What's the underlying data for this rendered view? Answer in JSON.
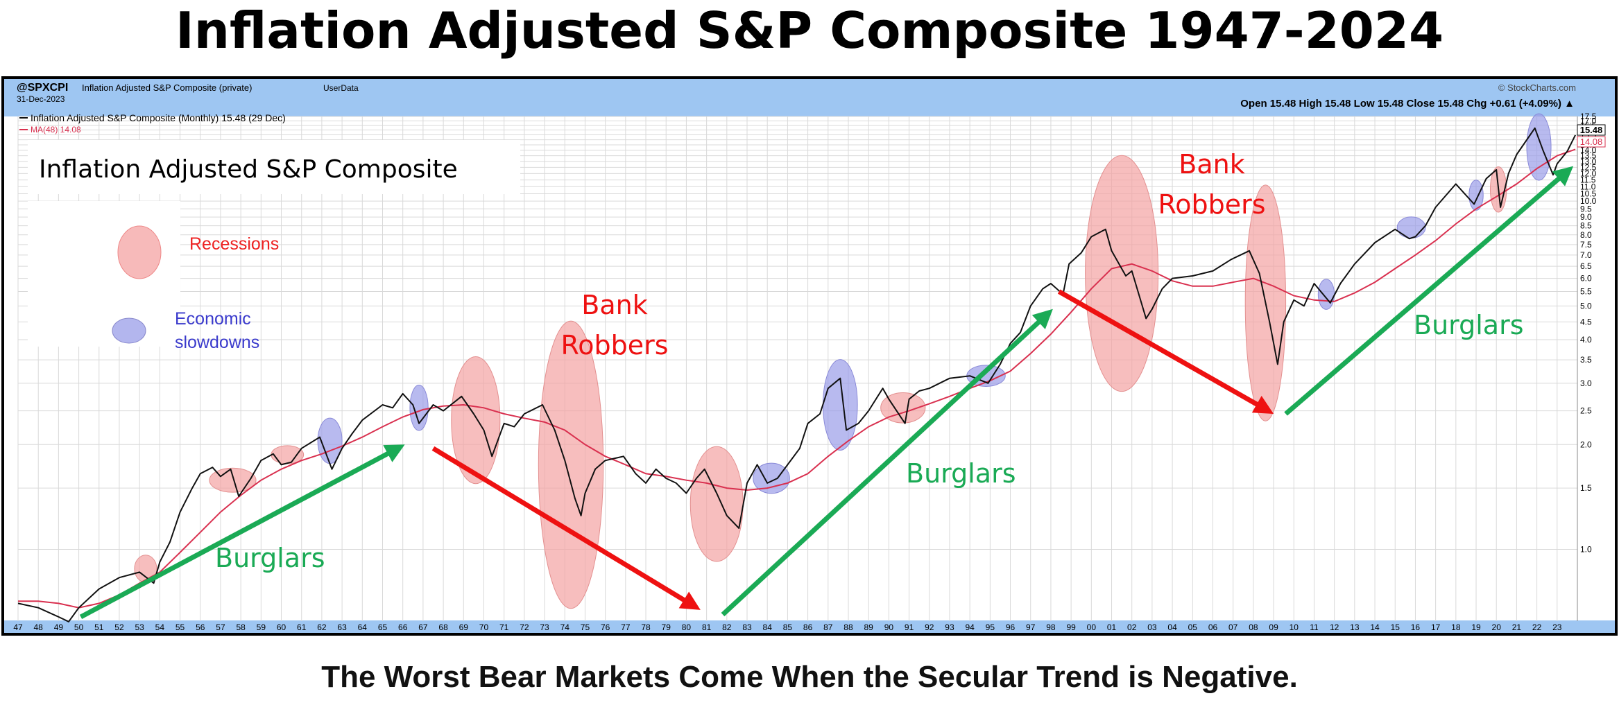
{
  "page": {
    "title": "Inflation Adjusted S&P Composite 1947-2024",
    "caption": "The Worst Bear Markets Come When the Secular Trend is Negative."
  },
  "header": {
    "symbol": "@SPXCPI",
    "symbol_desc": "Inflation Adjusted S&P Composite (private)",
    "userdata": "UserData",
    "date": "31-Dec-2023",
    "watermark": "© StockCharts.com",
    "ohlc": "Open 15.48  High 15.48  Low 15.48  Close 15.48  Chg +0.61 (+4.09%) ▲"
  },
  "legend": {
    "line1": "Inflation Adjusted S&P Composite (Monthly) 15.48 (29 Dec)",
    "line2": "MA(48) 14.08",
    "box_title": "Inflation Adjusted S&P Composite",
    "recessions_label": "Recessions",
    "slowdowns_label_1": "Economic",
    "slowdowns_label_2": "slowdowns"
  },
  "price_tags": {
    "close": "15.48",
    "ma": "14.08"
  },
  "colors": {
    "price_line": "#111111",
    "ma_line": "#d9304f",
    "recession_fill": "#f4a3a3",
    "slowdown_fill": "#9a9de8",
    "burglars": "#1aaa55",
    "robbers": "#ee1111",
    "header_bg": "#9ec6f2",
    "grid": "#d9d9d9"
  },
  "annotations": {
    "burglars": "Burglars",
    "bank_robbers_1": "Bank",
    "bank_robbers_2": "Robbers"
  },
  "chart_data": {
    "type": "line",
    "log_scale": true,
    "grid": true,
    "x_range": [
      1947,
      2024
    ],
    "y_range": [
      0.6,
      17.5
    ],
    "x_tick_labels": [
      "47",
      "48",
      "49",
      "50",
      "51",
      "52",
      "53",
      "54",
      "55",
      "56",
      "57",
      "58",
      "59",
      "60",
      "61",
      "62",
      "63",
      "64",
      "65",
      "66",
      "67",
      "68",
      "69",
      "70",
      "71",
      "72",
      "73",
      "74",
      "75",
      "76",
      "77",
      "78",
      "79",
      "80",
      "81",
      "82",
      "83",
      "84",
      "85",
      "86",
      "87",
      "88",
      "89",
      "90",
      "91",
      "92",
      "93",
      "94",
      "95",
      "96",
      "97",
      "98",
      "99",
      "00",
      "01",
      "02",
      "03",
      "04",
      "05",
      "06",
      "07",
      "08",
      "09",
      "10",
      "11",
      "12",
      "13",
      "14",
      "15",
      "16",
      "17",
      "18",
      "19",
      "20",
      "21",
      "22",
      "23"
    ],
    "y_ticks": [
      1.0,
      1.5,
      2.0,
      2.5,
      3.0,
      3.5,
      4.0,
      4.5,
      5.0,
      5.5,
      6.0,
      6.5,
      7.0,
      7.5,
      8.0,
      8.5,
      9.0,
      9.5,
      10.0,
      10.5,
      11.0,
      11.5,
      12.0,
      12.5,
      13.0,
      13.5,
      14.0,
      14.5,
      15.0,
      15.5,
      16.0,
      16.5,
      17.0,
      17.5
    ],
    "series": [
      {
        "name": "Inflation Adjusted S&P Composite (Monthly)",
        "points": [
          [
            1947,
            0.7
          ],
          [
            1948,
            0.68
          ],
          [
            1949,
            0.64
          ],
          [
            1949.5,
            0.62
          ],
          [
            1950,
            0.68
          ],
          [
            1951,
            0.77
          ],
          [
            1952,
            0.83
          ],
          [
            1953,
            0.86
          ],
          [
            1953.7,
            0.8
          ],
          [
            1954,
            0.92
          ],
          [
            1954.5,
            1.05
          ],
          [
            1955,
            1.28
          ],
          [
            1955.6,
            1.5
          ],
          [
            1956,
            1.65
          ],
          [
            1956.6,
            1.72
          ],
          [
            1957,
            1.62
          ],
          [
            1957.5,
            1.7
          ],
          [
            1957.9,
            1.42
          ],
          [
            1958.5,
            1.6
          ],
          [
            1959,
            1.8
          ],
          [
            1959.6,
            1.88
          ],
          [
            1960,
            1.75
          ],
          [
            1960.5,
            1.78
          ],
          [
            1961,
            1.95
          ],
          [
            1961.9,
            2.1
          ],
          [
            1962.5,
            1.7
          ],
          [
            1963,
            1.95
          ],
          [
            1963.5,
            2.15
          ],
          [
            1964,
            2.35
          ],
          [
            1965,
            2.6
          ],
          [
            1965.5,
            2.55
          ],
          [
            1966,
            2.8
          ],
          [
            1966.5,
            2.6
          ],
          [
            1966.8,
            2.3
          ],
          [
            1967.5,
            2.6
          ],
          [
            1968,
            2.5
          ],
          [
            1968.9,
            2.75
          ],
          [
            1969.5,
            2.45
          ],
          [
            1970,
            2.2
          ],
          [
            1970.4,
            1.85
          ],
          [
            1971,
            2.3
          ],
          [
            1971.5,
            2.25
          ],
          [
            1972,
            2.45
          ],
          [
            1972.9,
            2.6
          ],
          [
            1973.5,
            2.2
          ],
          [
            1974,
            1.8
          ],
          [
            1974.5,
            1.4
          ],
          [
            1974.8,
            1.25
          ],
          [
            1975,
            1.45
          ],
          [
            1975.5,
            1.7
          ],
          [
            1976,
            1.8
          ],
          [
            1976.9,
            1.85
          ],
          [
            1977.5,
            1.65
          ],
          [
            1978,
            1.55
          ],
          [
            1978.5,
            1.7
          ],
          [
            1979,
            1.6
          ],
          [
            1979.5,
            1.55
          ],
          [
            1980,
            1.45
          ],
          [
            1980.5,
            1.6
          ],
          [
            1980.9,
            1.7
          ],
          [
            1981.5,
            1.45
          ],
          [
            1982,
            1.25
          ],
          [
            1982.6,
            1.15
          ],
          [
            1983,
            1.55
          ],
          [
            1983.5,
            1.75
          ],
          [
            1984,
            1.55
          ],
          [
            1984.5,
            1.6
          ],
          [
            1985,
            1.75
          ],
          [
            1985.6,
            1.95
          ],
          [
            1986,
            2.3
          ],
          [
            1986.6,
            2.45
          ],
          [
            1987,
            2.9
          ],
          [
            1987.6,
            3.1
          ],
          [
            1987.9,
            2.2
          ],
          [
            1988.5,
            2.3
          ],
          [
            1989,
            2.5
          ],
          [
            1989.7,
            2.9
          ],
          [
            1990,
            2.7
          ],
          [
            1990.8,
            2.3
          ],
          [
            1991,
            2.7
          ],
          [
            1991.5,
            2.85
          ],
          [
            1992,
            2.9
          ],
          [
            1993,
            3.1
          ],
          [
            1994,
            3.15
          ],
          [
            1994.9,
            3.0
          ],
          [
            1995.5,
            3.4
          ],
          [
            1996,
            3.9
          ],
          [
            1996.5,
            4.2
          ],
          [
            1997,
            5.0
          ],
          [
            1997.6,
            5.6
          ],
          [
            1998,
            5.8
          ],
          [
            1998.6,
            5.4
          ],
          [
            1998.9,
            6.6
          ],
          [
            1999.5,
            7.1
          ],
          [
            2000,
            7.9
          ],
          [
            2000.7,
            8.3
          ],
          [
            2001,
            7.2
          ],
          [
            2001.7,
            6.1
          ],
          [
            2002,
            6.3
          ],
          [
            2002.7,
            4.6
          ],
          [
            2003,
            4.9
          ],
          [
            2003.5,
            5.6
          ],
          [
            2004,
            6.0
          ],
          [
            2005,
            6.1
          ],
          [
            2006,
            6.3
          ],
          [
            2006.9,
            6.8
          ],
          [
            2007.8,
            7.2
          ],
          [
            2008.3,
            6.2
          ],
          [
            2008.8,
            4.5
          ],
          [
            2009.2,
            3.4
          ],
          [
            2009.5,
            4.5
          ],
          [
            2010,
            5.2
          ],
          [
            2010.5,
            5.0
          ],
          [
            2011,
            5.8
          ],
          [
            2011.8,
            5.1
          ],
          [
            2012.3,
            5.8
          ],
          [
            2013,
            6.6
          ],
          [
            2014,
            7.6
          ],
          [
            2015,
            8.3
          ],
          [
            2015.7,
            7.8
          ],
          [
            2016,
            7.9
          ],
          [
            2016.5,
            8.5
          ],
          [
            2017,
            9.6
          ],
          [
            2018,
            11.2
          ],
          [
            2018.9,
            9.8
          ],
          [
            2019.5,
            11.6
          ],
          [
            2020,
            12.3
          ],
          [
            2020.2,
            9.6
          ],
          [
            2020.6,
            12.0
          ],
          [
            2021,
            13.6
          ],
          [
            2021.9,
            16.2
          ],
          [
            2022.3,
            14.0
          ],
          [
            2022.8,
            11.9
          ],
          [
            2023,
            12.8
          ],
          [
            2023.5,
            13.9
          ],
          [
            2023.9,
            15.48
          ]
        ]
      },
      {
        "name": "MA(48)",
        "points": [
          [
            1947,
            0.71
          ],
          [
            1948,
            0.71
          ],
          [
            1949,
            0.7
          ],
          [
            1950,
            0.68
          ],
          [
            1951,
            0.7
          ],
          [
            1952,
            0.74
          ],
          [
            1953,
            0.8
          ],
          [
            1954,
            0.86
          ],
          [
            1955,
            0.98
          ],
          [
            1956,
            1.12
          ],
          [
            1957,
            1.28
          ],
          [
            1958,
            1.43
          ],
          [
            1959,
            1.58
          ],
          [
            1960,
            1.7
          ],
          [
            1961,
            1.8
          ],
          [
            1962,
            1.88
          ],
          [
            1963,
            1.98
          ],
          [
            1964,
            2.1
          ],
          [
            1965,
            2.25
          ],
          [
            1966,
            2.4
          ],
          [
            1967,
            2.52
          ],
          [
            1968,
            2.58
          ],
          [
            1969,
            2.6
          ],
          [
            1970,
            2.55
          ],
          [
            1971,
            2.45
          ],
          [
            1972,
            2.38
          ],
          [
            1973,
            2.32
          ],
          [
            1974,
            2.2
          ],
          [
            1975,
            2.0
          ],
          [
            1976,
            1.85
          ],
          [
            1977,
            1.75
          ],
          [
            1978,
            1.65
          ],
          [
            1979,
            1.62
          ],
          [
            1980,
            1.58
          ],
          [
            1981,
            1.55
          ],
          [
            1982,
            1.5
          ],
          [
            1983,
            1.48
          ],
          [
            1984,
            1.5
          ],
          [
            1985,
            1.55
          ],
          [
            1986,
            1.65
          ],
          [
            1987,
            1.85
          ],
          [
            1988,
            2.05
          ],
          [
            1989,
            2.25
          ],
          [
            1990,
            2.4
          ],
          [
            1991,
            2.5
          ],
          [
            1992,
            2.62
          ],
          [
            1993,
            2.75
          ],
          [
            1994,
            2.9
          ],
          [
            1995,
            3.05
          ],
          [
            1996,
            3.25
          ],
          [
            1997,
            3.65
          ],
          [
            1998,
            4.15
          ],
          [
            1999,
            4.8
          ],
          [
            2000,
            5.6
          ],
          [
            2001,
            6.4
          ],
          [
            2002,
            6.6
          ],
          [
            2003,
            6.3
          ],
          [
            2004,
            5.9
          ],
          [
            2005,
            5.7
          ],
          [
            2006,
            5.7
          ],
          [
            2007,
            5.85
          ],
          [
            2008,
            6.0
          ],
          [
            2009,
            5.7
          ],
          [
            2010,
            5.35
          ],
          [
            2011,
            5.2
          ],
          [
            2012,
            5.15
          ],
          [
            2013,
            5.45
          ],
          [
            2014,
            5.85
          ],
          [
            2015,
            6.4
          ],
          [
            2016,
            7.0
          ],
          [
            2017,
            7.7
          ],
          [
            2018,
            8.6
          ],
          [
            2019,
            9.5
          ],
          [
            2020,
            10.3
          ],
          [
            2021,
            11.2
          ],
          [
            2022,
            12.4
          ],
          [
            2023,
            13.5
          ],
          [
            2023.9,
            14.08
          ]
        ]
      }
    ],
    "regions": {
      "recessions": [
        [
          1953.3,
          0.88,
          0.55,
          0.09
        ],
        [
          1957.6,
          1.58,
          1.15,
          0.08
        ],
        [
          1960.3,
          1.87,
          0.8,
          0.06
        ],
        [
          1969.6,
          2.35,
          1.2,
          0.42
        ],
        [
          1974.3,
          1.75,
          1.6,
          0.95
        ],
        [
          1981.5,
          1.35,
          1.3,
          0.38
        ],
        [
          1990.7,
          2.55,
          1.1,
          0.1
        ],
        [
          2001.5,
          6.2,
          1.8,
          0.78
        ],
        [
          2008.6,
          5.1,
          1.0,
          0.78
        ],
        [
          2020.1,
          10.8,
          0.4,
          0.15
        ]
      ],
      "slowdowns": [
        [
          1962.4,
          2.05,
          0.6,
          0.15
        ],
        [
          1966.8,
          2.55,
          0.45,
          0.15
        ],
        [
          1984.2,
          1.6,
          0.9,
          0.1
        ],
        [
          1987.6,
          2.6,
          0.85,
          0.3
        ],
        [
          1994.8,
          3.15,
          0.95,
          0.07
        ],
        [
          2011.6,
          5.4,
          0.4,
          0.1
        ],
        [
          2015.8,
          8.4,
          0.7,
          0.07
        ],
        [
          2019.0,
          10.4,
          0.35,
          0.1
        ],
        [
          2022.1,
          14.3,
          0.6,
          0.22
        ]
      ]
    },
    "trends": {
      "burglars": [
        [
          [
            1950.1,
            0.64
          ],
          [
            1966.1,
            2.0
          ]
        ],
        [
          [
            1981.8,
            0.65
          ],
          [
            1998.1,
            4.9
          ]
        ],
        [
          [
            2009.6,
            2.45
          ],
          [
            2023.8,
            12.6
          ]
        ]
      ],
      "robbers": [
        [
          [
            1967.5,
            1.95
          ],
          [
            1980.7,
            0.67
          ]
        ],
        [
          [
            1998.4,
            5.5
          ],
          [
            2009.0,
            2.45
          ]
        ]
      ]
    }
  }
}
